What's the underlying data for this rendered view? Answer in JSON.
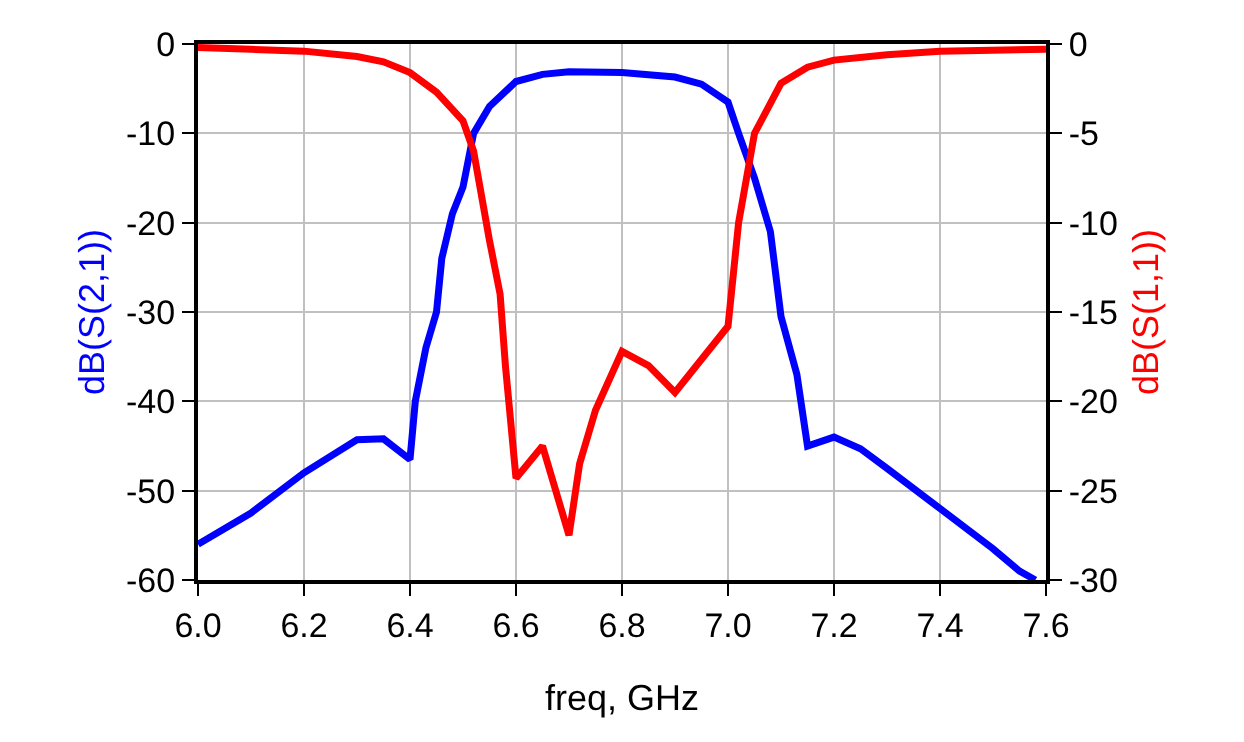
{
  "chart_data": {
    "type": "line",
    "xlabel": "freq, GHz",
    "ylabel": "dB(S(2,1))",
    "y2label": "dB(S(1,1))",
    "xlim": [
      6.0,
      7.6
    ],
    "xticks": [
      {
        "value": 6.0,
        "label": "6.0"
      },
      {
        "value": 6.2,
        "label": "6.2"
      },
      {
        "value": 6.4,
        "label": "6.4"
      },
      {
        "value": 6.6,
        "label": "6.6"
      },
      {
        "value": 6.8,
        "label": "6.8"
      },
      {
        "value": 7.0,
        "label": "7.0"
      },
      {
        "value": 7.2,
        "label": "7.2"
      },
      {
        "value": 7.4,
        "label": "7.4"
      },
      {
        "value": 7.6,
        "label": "7.6"
      }
    ],
    "ylim": [
      -60,
      0
    ],
    "yticks": [
      -60,
      -50,
      -40,
      -30,
      -20,
      -10,
      0
    ],
    "y2lim": [
      -30,
      0
    ],
    "y2ticks": [
      -30,
      -25,
      -20,
      -15,
      -10,
      -5,
      0
    ],
    "grid": true,
    "line_style": "solid",
    "series": [
      {
        "color": "#0000ff",
        "axis": "y",
        "x": [
          6.0,
          6.1,
          6.2,
          6.3,
          6.35,
          6.4,
          6.41,
          6.43,
          6.45,
          6.46,
          6.48,
          6.5,
          6.52,
          6.55,
          6.6,
          6.65,
          6.7,
          6.8,
          6.9,
          6.95,
          7.0,
          7.02,
          7.05,
          7.08,
          7.1,
          7.13,
          7.15,
          7.2,
          7.25,
          7.3,
          7.4,
          7.5,
          7.55,
          7.58
        ],
        "values": [
          -56,
          -52.5,
          -48,
          -44.3,
          -44.2,
          -46.5,
          -40,
          -34,
          -30,
          -24,
          -19,
          -16,
          -10,
          -7,
          -4.2,
          -3.4,
          -3.1,
          -3.2,
          -3.7,
          -4.5,
          -6.5,
          -10,
          -15,
          -21,
          -30.5,
          -37,
          -45,
          -44,
          -45.3,
          -47.5,
          -52,
          -56.5,
          -59,
          -60
        ]
      },
      {
        "color": "#ff0000",
        "axis": "y2",
        "x": [
          6.0,
          6.1,
          6.2,
          6.3,
          6.35,
          6.4,
          6.45,
          6.5,
          6.52,
          6.55,
          6.57,
          6.58,
          6.6,
          6.65,
          6.7,
          6.72,
          6.75,
          6.8,
          6.85,
          6.9,
          7.0,
          7.02,
          7.05,
          7.1,
          7.15,
          7.2,
          7.3,
          7.4,
          7.6
        ],
        "values": [
          -0.2,
          -0.3,
          -0.4,
          -0.7,
          -1.0,
          -1.6,
          -2.7,
          -4.3,
          -6,
          -11,
          -14,
          -18,
          -24.3,
          -22.5,
          -27.5,
          -23.5,
          -20.5,
          -17.2,
          -18,
          -19.5,
          -15.8,
          -10,
          -5,
          -2.2,
          -1.3,
          -0.9,
          -0.6,
          -0.4,
          -0.3
        ]
      }
    ]
  }
}
